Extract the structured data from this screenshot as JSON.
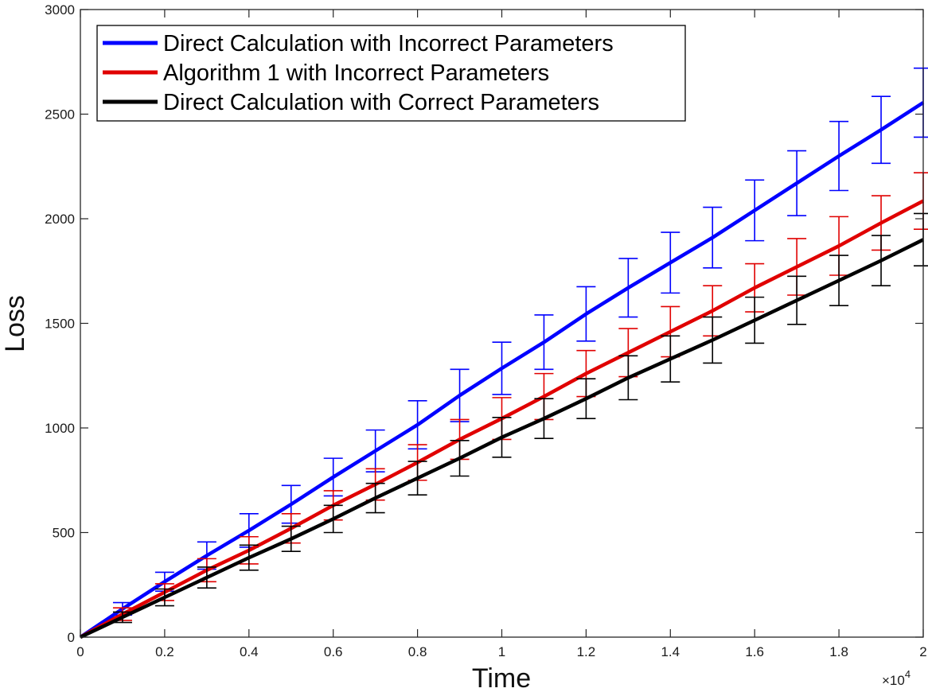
{
  "chart_data": {
    "type": "line",
    "title": "",
    "xlabel": "Time",
    "ylabel": "Loss",
    "x_exponent_label": "×10",
    "x_exponent_power": "4",
    "xlim": [
      0,
      20000
    ],
    "ylim": [
      0,
      3000
    ],
    "x_ticks": [
      0,
      2000,
      4000,
      6000,
      8000,
      10000,
      12000,
      14000,
      16000,
      18000,
      20000
    ],
    "x_tick_labels": [
      "0",
      "0.2",
      "0.4",
      "0.6",
      "0.8",
      "1",
      "1.2",
      "1.4",
      "1.6",
      "1.8",
      "2"
    ],
    "y_ticks": [
      0,
      500,
      1000,
      1500,
      2000,
      2500,
      3000
    ],
    "y_tick_labels": [
      "0",
      "500",
      "1000",
      "1500",
      "2000",
      "2500",
      "3000"
    ],
    "grid": false,
    "legend_position": "top-left",
    "x": [
      0,
      1000,
      2000,
      3000,
      4000,
      5000,
      6000,
      7000,
      8000,
      9000,
      10000,
      11000,
      12000,
      13000,
      14000,
      15000,
      16000,
      17000,
      18000,
      19000,
      20000
    ],
    "series": [
      {
        "name": "Direct Calculation with Incorrect Parameters",
        "color": "#0000ff",
        "values": [
          0,
          135,
          265,
          390,
          510,
          635,
          765,
          890,
          1015,
          1155,
          1285,
          1410,
          1545,
          1670,
          1790,
          1910,
          2040,
          2170,
          2300,
          2425,
          2555
        ],
        "errors": [
          0,
          30,
          45,
          65,
          80,
          90,
          90,
          100,
          115,
          125,
          125,
          130,
          130,
          140,
          145,
          145,
          145,
          155,
          165,
          160,
          165
        ]
      },
      {
        "name": "Algorithm 1 with Incorrect Parameters",
        "color": "#e00000",
        "values": [
          0,
          110,
          215,
          320,
          415,
          520,
          630,
          730,
          835,
          945,
          1045,
          1150,
          1260,
          1360,
          1460,
          1560,
          1670,
          1770,
          1870,
          1980,
          2085
        ],
        "errors": [
          0,
          30,
          40,
          55,
          65,
          70,
          70,
          75,
          85,
          95,
          100,
          110,
          110,
          115,
          120,
          120,
          115,
          135,
          140,
          130,
          135
        ]
      },
      {
        "name": "Direct Calculation with Correct Parameters",
        "color": "#000000",
        "values": [
          0,
          95,
          190,
          285,
          380,
          470,
          565,
          665,
          760,
          855,
          955,
          1045,
          1140,
          1240,
          1330,
          1420,
          1515,
          1610,
          1705,
          1800,
          1900
        ],
        "errors": [
          0,
          25,
          40,
          50,
          60,
          60,
          65,
          70,
          80,
          85,
          95,
          95,
          95,
          105,
          110,
          110,
          110,
          115,
          120,
          120,
          125
        ]
      }
    ]
  }
}
